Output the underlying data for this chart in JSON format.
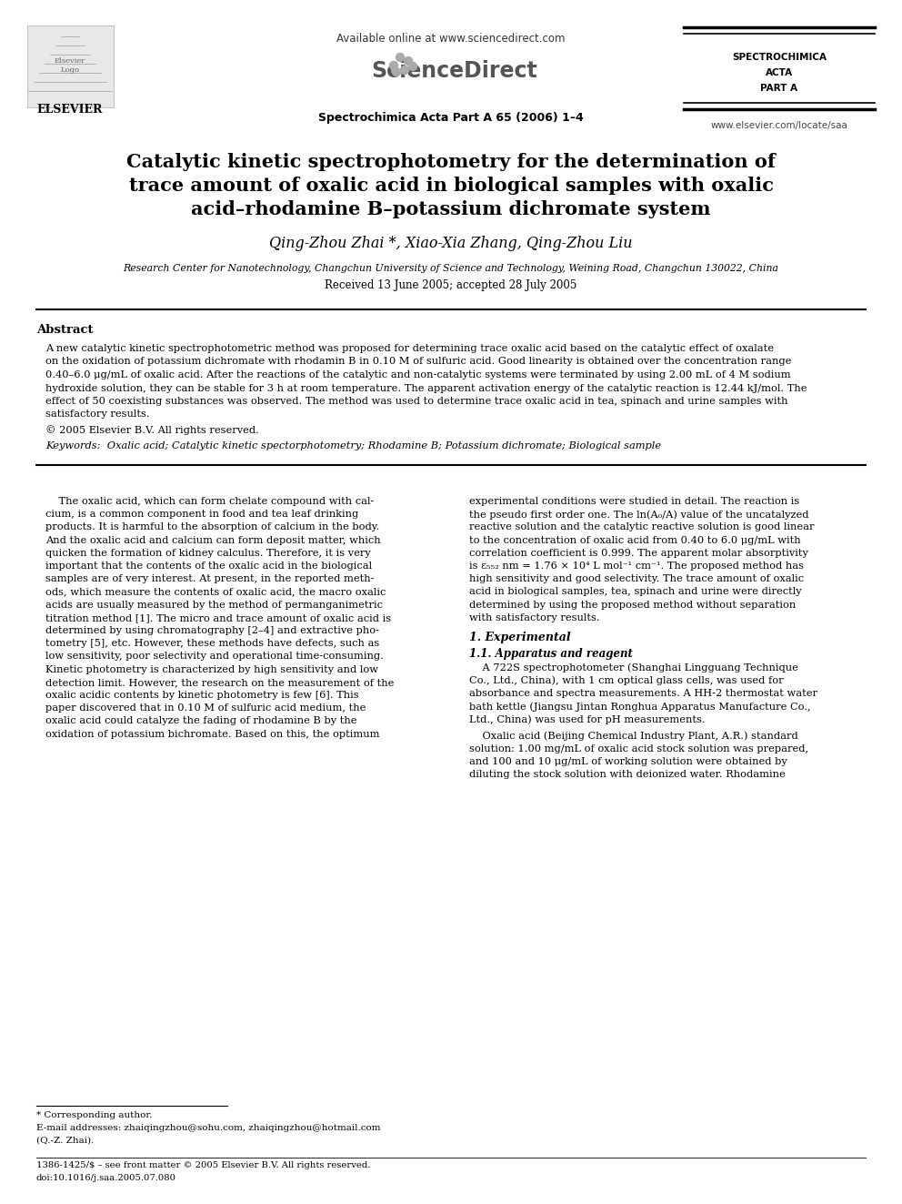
{
  "bg_color": "#ffffff",
  "title_line1": "Catalytic kinetic spectrophotometry for the determination of",
  "title_line2": "trace amount of oxalic acid in biological samples with oxalic",
  "title_line3": "acid–rhodamine B–potassium dichromate system",
  "authors_star": "Qing-Zhou Zhai *, Xiao-Xia Zhang, Qing-Zhou Liu",
  "affiliation": "Research Center for Nanotechnology, Changchun University of Science and Technology, Weining Road, Changchun 130022, China",
  "received": "Received 13 June 2005; accepted 28 July 2005",
  "journal_info": "Spectrochimica Acta Part A 65 (2006) 1–4",
  "available_online": "Available online at www.sciencedirect.com",
  "website_right": "www.elsevier.com/locate/saa",
  "elsevier_text": "ELSEVIER",
  "abstract_title": "Abstract",
  "copyright_text": "© 2005 Elsevier B.V. All rights reserved.",
  "keywords_text": "Keywords:  Oxalic acid; Catalytic kinetic spectorphotometry; Rhodamine B; Potassium dichromate; Biological sample",
  "footnote_star": "* Corresponding author.",
  "footnote_email1": "E-mail addresses: zhaiqingzhou@sohu.com, zhaiqingzhou@hotmail.com",
  "footnote_email2": "(Q.-Z. Zhai).",
  "footnote_bottom1": "1386-1425/$ – see front matter © 2005 Elsevier B.V. All rights reserved.",
  "footnote_bottom2": "doi:10.1016/j.saa.2005.07.080",
  "abstract_lines": [
    "A new catalytic kinetic spectrophotometric method was proposed for determining trace oxalic acid based on the catalytic effect of oxalate",
    "on the oxidation of potassium dichromate with rhodamin B in 0.10 M of sulfuric acid. Good linearity is obtained over the concentration range",
    "0.40–6.0 μg/mL of oxalic acid. After the reactions of the catalytic and non-catalytic systems were terminated by using 2.00 mL of 4 M sodium",
    "hydroxide solution, they can be stable for 3 h at room temperature. The apparent activation energy of the catalytic reaction is 12.44 kJ/mol. The",
    "effect of 50 coexisting substances was observed. The method was used to determine trace oxalic acid in tea, spinach and urine samples with",
    "satisfactory results."
  ],
  "intro_left_lines": [
    "    The oxalic acid, which can form chelate compound with cal-",
    "cium, is a common component in food and tea leaf drinking",
    "products. It is harmful to the absorption of calcium in the body.",
    "And the oxalic acid and calcium can form deposit matter, which",
    "quicken the formation of kidney calculus. Therefore, it is very",
    "important that the contents of the oxalic acid in the biological",
    "samples are of very interest. At present, in the reported meth-",
    "ods, which measure the contents of oxalic acid, the macro oxalic",
    "acids are usually measured by the method of permanganimetric",
    "titration method [1]. The micro and trace amount of oxalic acid is",
    "determined by using chromatography [2–4] and extractive pho-",
    "tometry [5], etc. However, these methods have defects, such as",
    "low sensitivity, poor selectivity and operational time-consuming.",
    "Kinetic photometry is characterized by high sensitivity and low",
    "detection limit. However, the research on the measurement of the",
    "oxalic acidic contents by kinetic photometry is few [6]. This",
    "paper discovered that in 0.10 M of sulfuric acid medium, the",
    "oxalic acid could catalyze the fading of rhodamine B by the",
    "oxidation of potassium bichromate. Based on this, the optimum"
  ],
  "intro_right_lines": [
    "experimental conditions were studied in detail. The reaction is",
    "the pseudo first order one. The ln(A₀/A) value of the uncatalyzed",
    "reactive solution and the catalytic reactive solution is good linear",
    "to the concentration of oxalic acid from 0.40 to 6.0 μg/mL with",
    "correlation coefficient is 0.999. The apparent molar absorptivity",
    "is ε₅₅₂ nm = 1.76 × 10⁴ L mol⁻¹ cm⁻¹. The proposed method has",
    "high sensitivity and good selectivity. The trace amount of oxalic",
    "acid in biological samples, tea, spinach and urine were directly",
    "determined by using the proposed method without separation",
    "with satisfactory results."
  ],
  "section1_title": "1. Experimental",
  "section11_title": "1.1. Apparatus and reagent",
  "section11_lines": [
    "    A 722S spectrophotometer (Shanghai Lingguang Technique",
    "Co., Ltd., China), with 1 cm optical glass cells, was used for",
    "absorbance and spectra measurements. A HH-2 thermostat water",
    "bath kettle (Jiangsu Jintan Ronghua Apparatus Manufacture Co.,",
    "Ltd., China) was used for pH measurements."
  ],
  "section11_lines2": [
    "    Oxalic acid (Beijing Chemical Industry Plant, A.R.) standard",
    "solution: 1.00 mg/mL of oxalic acid stock solution was prepared,",
    "and 100 and 10 μg/mL of working solution were obtained by",
    "diluting the stock solution with deionized water. Rhodamine"
  ]
}
